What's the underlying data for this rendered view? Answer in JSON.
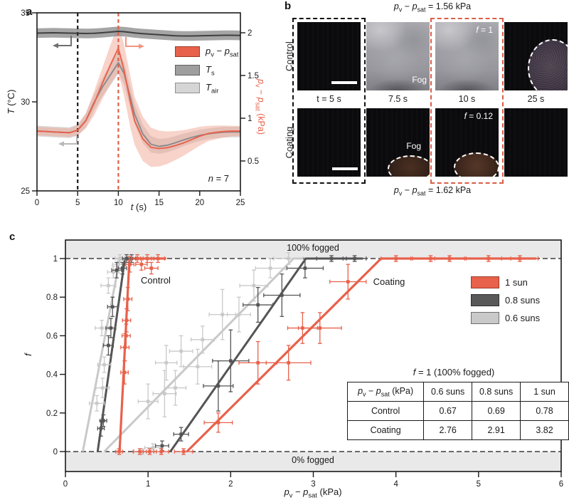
{
  "formula": {
    "p1": "p",
    "s1": "v",
    "minus": " − ",
    "p2": "p",
    "s2": "sat"
  },
  "panel_a": {
    "label": "a",
    "xlabel_main": "t",
    "xlabel_unit": " (s)",
    "ylabel_main": "T",
    "ylabel_unit": " (°C)",
    "right_axis_suffix": " (kPa)",
    "note_prefix": "n",
    "note": " = 7",
    "legend": [
      {
        "kind": "formula",
        "color": "#e8614b",
        "border": "#9c3a26"
      },
      {
        "kind": "sub",
        "main": "T",
        "sub": "s",
        "color": "#9e9e9e",
        "border": "#606060"
      },
      {
        "kind": "sub",
        "main": "T",
        "sub": "air",
        "color": "#d5d5d5",
        "border": "#909090"
      }
    ]
  },
  "panel_b": {
    "label": "b",
    "caption_top_suffix": " = 1.56 kPa",
    "caption_bottom_suffix": " = 1.62 kPa",
    "row_labels": [
      "Control",
      "Coating"
    ],
    "time_labels": [
      "t = 5 s",
      "7.5 s",
      "10 s",
      "25 s"
    ],
    "cells": [
      [
        {
          "style": "dark",
          "scalebar": true
        },
        {
          "style": "fog",
          "fog_label": "Fog"
        },
        {
          "style": "fog",
          "f_sym": "f",
          "f_rest": " = 1"
        },
        {
          "style": "dark",
          "patch": "corner"
        }
      ],
      [
        {
          "style": "dark",
          "scalebar": true
        },
        {
          "style": "dark",
          "fog_label": "Fog",
          "patch": "bottom-left"
        },
        {
          "style": "dark",
          "f_sym": "f",
          "f_rest": " = 0.12",
          "patch": "bottom-right"
        },
        {
          "style": "dark"
        }
      ]
    ]
  },
  "panel_c": {
    "label": "c",
    "ylabel": "f",
    "xlabel_suffix": " (kPa)",
    "band_label_top": "100% fogged",
    "band_label_bottom": "0% fogged",
    "annot_control": "Control",
    "annot_coating": "Coating",
    "legend": [
      {
        "label": "1 sun",
        "color": "#e8614b",
        "border": "#9c3a26"
      },
      {
        "label": "0.8 suns",
        "color": "#595959",
        "border": "#2e2e2e"
      },
      {
        "label": "0.6 suns",
        "color": "#c9c9c9",
        "border": "#6e6e6e"
      }
    ],
    "table": {
      "title_sym": "f",
      "title_rest": " = 1 (100% fogged)",
      "header_suffix": " (kPa)",
      "col_headers": [
        "0.6 suns",
        "0.8 suns",
        "1 sun"
      ],
      "rows": [
        {
          "label": "Control",
          "values": [
            "0.67",
            "0.69",
            "0.78"
          ]
        },
        {
          "label": "Coating",
          "values": [
            "2.76",
            "2.91",
            "3.82"
          ]
        }
      ]
    }
  },
  "chart_data": [
    {
      "id": "panel_a",
      "type": "line",
      "title": "",
      "xlabel": "t (s)",
      "ylabel_left": "T (°C)",
      "ylabel_right": "pv − psat (kPa)",
      "xlim": [
        0,
        25
      ],
      "ylim_left": [
        25,
        35
      ],
      "ylim_right": [
        0.15,
        2.2333
      ],
      "x_ticks": [
        0,
        5,
        10,
        15,
        20,
        25
      ],
      "y_left_ticks": [
        25,
        30,
        35
      ],
      "y_right_ticks": [
        0.5,
        1,
        1.5,
        2
      ],
      "vlines": [
        {
          "x": 5,
          "color": "#1a1a1a"
        },
        {
          "x": 10,
          "color": "#e0604a"
        }
      ],
      "sample_note": "n = 7",
      "x": [
        0,
        1,
        2,
        3,
        4,
        5,
        6,
        7,
        8,
        9,
        10,
        10.7,
        11.5,
        12,
        13,
        14,
        15,
        16,
        17,
        18,
        19,
        20,
        21,
        22,
        23,
        24,
        25
      ],
      "series": [
        {
          "name": "Tair",
          "axis": "left",
          "color": "#8a8a8a",
          "band_color": "#cccccc",
          "band_opacity": 0.75,
          "band": [
            0.3,
            0.3,
            0.3,
            0.3,
            0.3,
            0.32,
            0.38,
            0.46,
            0.52,
            0.58,
            0.62,
            0.62,
            0.58,
            0.56,
            0.52,
            0.46,
            0.42,
            0.4,
            0.38,
            0.35,
            0.33,
            0.31,
            0.3,
            0.3,
            0.3,
            0.3,
            0.3
          ],
          "y": [
            28.36,
            28.34,
            28.31,
            28.29,
            28.27,
            28.42,
            28.95,
            29.95,
            30.8,
            31.5,
            32.2,
            31.6,
            30.2,
            29.3,
            28.2,
            27.62,
            27.5,
            27.56,
            27.7,
            27.86,
            28.0,
            28.12,
            28.2,
            28.26,
            28.3,
            28.31,
            28.31
          ]
        },
        {
          "name": "pv − psat",
          "axis": "right",
          "color": "#e8614b",
          "band_color": "#f2a795",
          "band_opacity": 0.5,
          "band": [
            0.05,
            0.05,
            0.05,
            0.05,
            0.05,
            0.06,
            0.09,
            0.14,
            0.18,
            0.23,
            0.28,
            0.3,
            0.3,
            0.28,
            0.26,
            0.23,
            0.21,
            0.19,
            0.17,
            0.15,
            0.13,
            0.11,
            0.09,
            0.08,
            0.07,
            0.06,
            0.06
          ],
          "y": [
            0.85,
            0.845,
            0.84,
            0.835,
            0.83,
            0.86,
            0.97,
            1.17,
            1.4,
            1.62,
            1.82,
            1.56,
            1.18,
            0.97,
            0.76,
            0.66,
            0.645,
            0.655,
            0.68,
            0.71,
            0.75,
            0.79,
            0.82,
            0.835,
            0.845,
            0.85,
            0.85
          ]
        },
        {
          "name": "Ts",
          "axis": "left",
          "color": "#3f3f3f",
          "band_color": "#8e8e8e",
          "band_opacity": 0.8,
          "band": 0.27,
          "y": [
            33.86,
            33.87,
            33.88,
            33.87,
            33.86,
            33.85,
            33.84,
            33.85,
            33.88,
            33.92,
            33.96,
            33.94,
            33.9,
            33.87,
            33.83,
            33.8,
            33.77,
            33.74,
            33.71,
            33.7,
            33.7,
            33.71,
            33.72,
            33.73,
            33.74,
            33.74,
            33.73
          ]
        }
      ]
    },
    {
      "id": "panel_c",
      "type": "scatter",
      "title": "",
      "xlabel": "pv − psat (kPa)",
      "ylabel": "f",
      "xlim": [
        0,
        6
      ],
      "ylim": [
        0,
        1
      ],
      "x_ticks": [
        0,
        1,
        2,
        3,
        4,
        5,
        6
      ],
      "y_ticks": [
        0,
        0.2,
        0.4,
        0.6,
        0.8,
        1
      ],
      "hlines": [
        {
          "f": 1,
          "label": "100% fogged"
        },
        {
          "f": 0,
          "label": "0% fogged"
        }
      ],
      "series": [
        {
          "name": "Control 0.6 suns",
          "color": "#c9c9c9",
          "width": 3,
          "line": [
            [
              0.21,
              0
            ],
            [
              0.66,
              1
            ],
            [
              0.8,
              1
            ]
          ],
          "points": [
            [
              0.38,
              0.25,
              0.09,
              0.04
            ],
            [
              0.45,
              0.33,
              0.08,
              0.05
            ],
            [
              0.47,
              0.45,
              0.08,
              0.04
            ],
            [
              0.44,
              0.64,
              0.08,
              0.04
            ],
            [
              0.52,
              0.86,
              0.09,
              0.04
            ],
            [
              0.58,
              0.93,
              0.07,
              0.03
            ],
            [
              0.63,
              0.97,
              0.06,
              0.03
            ],
            [
              0.66,
              1.0,
              0.06,
              0.02
            ]
          ]
        },
        {
          "name": "Coating 0.6 suns",
          "color": "#c9c9c9",
          "width": 3,
          "line": [
            [
              0.47,
              0
            ],
            [
              2.76,
              1
            ],
            [
              2.95,
              1
            ]
          ],
          "points": [
            [
              0.93,
              0.0,
              0.1,
              0.015
            ],
            [
              1.06,
              0.02,
              0.1,
              0.02
            ],
            [
              1.0,
              0.26,
              0.12,
              0.09
            ],
            [
              1.2,
              0.3,
              0.14,
              0.12
            ],
            [
              1.33,
              0.33,
              0.13,
              0.09
            ],
            [
              1.22,
              0.46,
              0.13,
              0.09
            ],
            [
              1.4,
              0.52,
              0.14,
              0.08
            ],
            [
              1.6,
              0.44,
              0.17,
              0.09
            ],
            [
              1.66,
              0.58,
              0.14,
              0.07
            ],
            [
              1.9,
              0.71,
              0.16,
              0.13
            ],
            [
              2.1,
              0.71,
              0.14,
              0.09
            ],
            [
              2.28,
              0.86,
              0.17,
              0.08
            ],
            [
              2.48,
              0.95,
              0.18,
              0.05
            ],
            [
              2.7,
              1.0,
              0.18,
              0.03
            ]
          ]
        },
        {
          "name": "Control 0.8 suns",
          "color": "#555555",
          "width": 3,
          "line": [
            [
              0.39,
              0
            ],
            [
              0.72,
              1
            ],
            [
              0.88,
              1
            ]
          ],
          "points": [
            [
              0.43,
              0.12,
              0.04,
              0.04
            ],
            [
              0.46,
              0.16,
              0.04,
              0.03
            ],
            [
              0.52,
              0.55,
              0.06,
              0.05
            ],
            [
              0.55,
              0.64,
              0.06,
              0.05
            ],
            [
              0.57,
              0.75,
              0.06,
              0.05
            ],
            [
              0.62,
              0.94,
              0.06,
              0.04
            ],
            [
              0.69,
              0.95,
              0.05,
              0.03
            ],
            [
              0.74,
              1.0,
              0.05,
              0.02
            ],
            [
              0.8,
              1.0,
              0.05,
              0.02
            ]
          ]
        },
        {
          "name": "Coating 0.8 suns",
          "color": "#555555",
          "width": 3,
          "line": [
            [
              1.27,
              0
            ],
            [
              2.91,
              1
            ],
            [
              3.6,
              1
            ]
          ],
          "points": [
            [
              1.17,
              0.03,
              0.08,
              0.025
            ],
            [
              1.4,
              0.09,
              0.09,
              0.035
            ],
            [
              1.85,
              0.34,
              0.18,
              0.13
            ],
            [
              2.0,
              0.47,
              0.22,
              0.16
            ],
            [
              2.33,
              0.76,
              0.18,
              0.09
            ],
            [
              2.62,
              0.81,
              0.22,
              0.11
            ],
            [
              2.9,
              0.95,
              0.22,
              0.05
            ],
            [
              3.22,
              1.0,
              0.18,
              0.015
            ],
            [
              3.5,
              1.0,
              0.14,
              0.015
            ]
          ]
        },
        {
          "name": "Control 1 sun",
          "color": "#e8614b",
          "width": 3.2,
          "line": [
            [
              0.655,
              0
            ],
            [
              0.775,
              1
            ],
            [
              1.22,
              1
            ]
          ],
          "points": [
            [
              0.65,
              0.0,
              0.04,
              0.015
            ],
            [
              0.715,
              0.41,
              0.045,
              0.06
            ],
            [
              0.72,
              0.54,
              0.05,
              0.07
            ],
            [
              0.735,
              0.6,
              0.05,
              0.06
            ],
            [
              0.74,
              0.68,
              0.05,
              0.06
            ],
            [
              0.755,
              0.79,
              0.05,
              0.06
            ],
            [
              0.78,
              0.97,
              0.05,
              0.04
            ],
            [
              0.87,
              1.0,
              0.07,
              0.02
            ],
            [
              0.92,
              0.97,
              0.07,
              0.03
            ],
            [
              0.99,
              1.0,
              0.08,
              0.02
            ],
            [
              1.04,
              0.95,
              0.08,
              0.03
            ],
            [
              1.12,
              1.0,
              0.08,
              0.02
            ]
          ]
        },
        {
          "name": "Coating 1 sun",
          "color": "#e8614b",
          "width": 3.2,
          "line": [
            [
              1.47,
              0
            ],
            [
              3.82,
              1
            ],
            [
              5.7,
              1
            ]
          ],
          "points": [
            [
              0.9,
              0.0,
              0.08,
              0.015
            ],
            [
              1.02,
              0.0,
              0.08,
              0.015
            ],
            [
              1.16,
              0.0,
              0.09,
              0.015
            ],
            [
              1.43,
              0.0,
              0.11,
              0.015
            ],
            [
              1.85,
              0.15,
              0.17,
              0.05
            ],
            [
              2.33,
              0.46,
              0.23,
              0.11
            ],
            [
              2.7,
              0.46,
              0.27,
              0.09
            ],
            [
              2.87,
              0.64,
              0.18,
              0.08
            ],
            [
              3.08,
              0.64,
              0.26,
              0.08
            ],
            [
              3.42,
              0.88,
              0.22,
              0.09
            ],
            [
              4.0,
              1.0,
              0.18,
              0.015
            ],
            [
              4.42,
              1.0,
              0.22,
              0.015
            ],
            [
              4.65,
              1.0,
              0.18,
              0.015
            ],
            [
              5.12,
              1.0,
              0.27,
              0.015
            ],
            [
              5.5,
              1.0,
              0.22,
              0.015
            ]
          ]
        }
      ]
    }
  ]
}
